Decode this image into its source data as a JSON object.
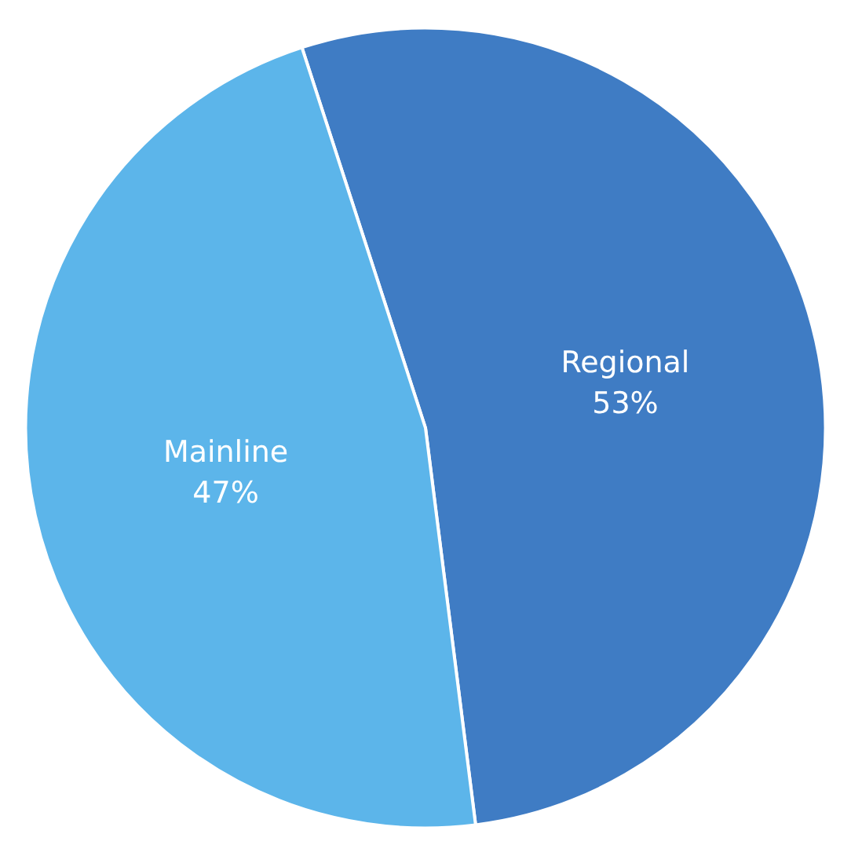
{
  "chart_data": {
    "type": "pie",
    "categories": [
      "Regional",
      "Mainline"
    ],
    "values": [
      53,
      47
    ],
    "colors": [
      "#3f7cc4",
      "#5cb5ea"
    ],
    "value_labels": [
      "53%",
      "47%"
    ],
    "legend": false
  }
}
